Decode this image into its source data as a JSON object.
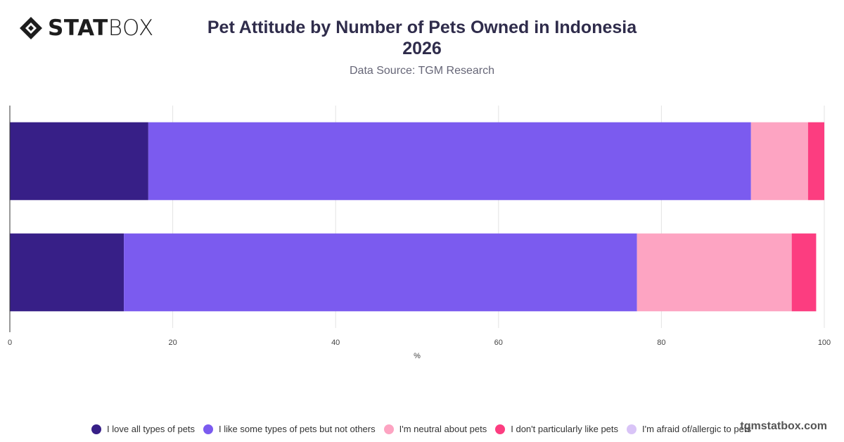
{
  "brand": {
    "logo_bold": "STAT",
    "logo_light": "BOX"
  },
  "header": {
    "title_line1": "Pet Attitude by Number of Pets Owned in Indonesia",
    "title_line2": "2026",
    "subtitle": "Data Source: TGM Research"
  },
  "watermark": "tgmstatbox.com",
  "chart_data": {
    "type": "bar",
    "orientation": "horizontal",
    "stacked": true,
    "categories": [
      "",
      ""
    ],
    "series": [
      {
        "name": "I love all types of pets",
        "color": "#371f87",
        "values": [
          17,
          14
        ]
      },
      {
        "name": "I like some types of pets but not others",
        "color": "#7b5bef",
        "values": [
          74,
          63
        ]
      },
      {
        "name": "I'm neutral about pets",
        "color": "#fda4c2",
        "values": [
          7,
          19
        ]
      },
      {
        "name": "I don't particularly like pets",
        "color": "#fc3d80",
        "values": [
          2,
          3
        ]
      },
      {
        "name": "I'm afraid of/allergic to pets",
        "color": "#d9c4f7",
        "values": [
          0,
          0
        ]
      }
    ],
    "xlabel": "%",
    "xlim": [
      0,
      100
    ],
    "xticks": [
      "0",
      "20",
      "40",
      "60",
      "80",
      "100"
    ],
    "grid": true,
    "legend_position": "bottom"
  }
}
